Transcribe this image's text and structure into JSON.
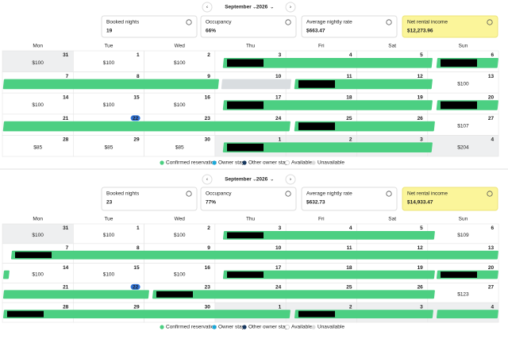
{
  "weekdays": [
    "Mon",
    "Tue",
    "Wed",
    "Thu",
    "Fri",
    "Sat",
    "Sun"
  ],
  "legend": [
    "Confirmed reservation",
    "Owner stay",
    "Other owner stay",
    "Available",
    "Unavailable"
  ],
  "calendars": [
    {
      "month": "September",
      "year": "2026",
      "stats": [
        {
          "label": "Booked nights",
          "value": "19"
        },
        {
          "label": "Occupancy",
          "value": "66%"
        },
        {
          "label": "Average nightly rate",
          "value": "$663.47"
        },
        {
          "label": "Net rental income",
          "value": "$12,273.96"
        }
      ],
      "weeks": [
        [
          {
            "day": "31",
            "price": "$100"
          },
          {
            "day": "1",
            "price": "$100"
          },
          {
            "day": "2",
            "price": "$100"
          },
          {
            "day": "3"
          },
          {
            "day": "4"
          },
          {
            "day": "5"
          },
          {
            "day": "6"
          }
        ],
        [
          {
            "day": "7"
          },
          {
            "day": "8"
          },
          {
            "day": "9"
          },
          {
            "day": "10"
          },
          {
            "day": "11"
          },
          {
            "day": "12"
          },
          {
            "day": "13",
            "price": "$100"
          }
        ],
        [
          {
            "day": "14",
            "price": "$100"
          },
          {
            "day": "15",
            "price": "$100"
          },
          {
            "day": "16",
            "price": "$100"
          },
          {
            "day": "17"
          },
          {
            "day": "18"
          },
          {
            "day": "19"
          },
          {
            "day": "20"
          }
        ],
        [
          {
            "day": "21"
          },
          {
            "day": "22"
          },
          {
            "day": "23"
          },
          {
            "day": "24"
          },
          {
            "day": "25"
          },
          {
            "day": "26"
          },
          {
            "day": "27",
            "price": "$107"
          }
        ],
        [
          {
            "day": "28",
            "price": "$85"
          },
          {
            "day": "29",
            "price": "$85"
          },
          {
            "day": "30",
            "price": "$85"
          },
          {
            "day": "1"
          },
          {
            "day": "2"
          },
          {
            "day": "3"
          },
          {
            "day": "4",
            "price": "$204"
          }
        ]
      ]
    },
    {
      "month": "September",
      "year": "2026",
      "stats": [
        {
          "label": "Booked nights",
          "value": "23"
        },
        {
          "label": "Occupancy",
          "value": "77%"
        },
        {
          "label": "Average nightly rate",
          "value": "$632.73"
        },
        {
          "label": "Net rental income",
          "value": "$14,933.47"
        }
      ],
      "weeks": [
        [
          {
            "day": "31",
            "price": "$100"
          },
          {
            "day": "1",
            "price": "$100"
          },
          {
            "day": "2",
            "price": "$100"
          },
          {
            "day": "3"
          },
          {
            "day": "4"
          },
          {
            "day": "5"
          },
          {
            "day": "6",
            "price": "$109"
          }
        ],
        [
          {
            "day": "7"
          },
          {
            "day": "8"
          },
          {
            "day": "9"
          },
          {
            "day": "10"
          },
          {
            "day": "11"
          },
          {
            "day": "12"
          },
          {
            "day": "13"
          }
        ],
        [
          {
            "day": "14",
            "price": "$100"
          },
          {
            "day": "15",
            "price": "$100"
          },
          {
            "day": "16",
            "price": "$100"
          },
          {
            "day": "17"
          },
          {
            "day": "18"
          },
          {
            "day": "19"
          },
          {
            "day": "20"
          }
        ],
        [
          {
            "day": "21"
          },
          {
            "day": "22"
          },
          {
            "day": "23"
          },
          {
            "day": "24"
          },
          {
            "day": "25"
          },
          {
            "day": "26"
          },
          {
            "day": "27",
            "price": "$123"
          }
        ],
        [
          {
            "day": "28"
          },
          {
            "day": "29"
          },
          {
            "day": "30"
          },
          {
            "day": "1"
          },
          {
            "day": "2"
          },
          {
            "day": "3"
          },
          {
            "day": "4"
          }
        ]
      ]
    }
  ]
}
